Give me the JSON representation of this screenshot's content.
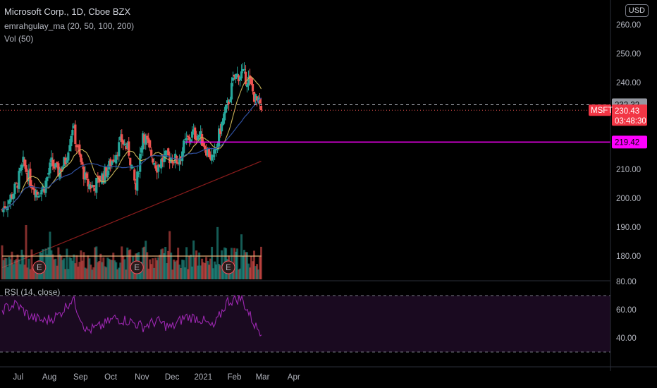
{
  "header": {
    "title": "Microsoft Corp., 1D, Cboe BZX",
    "ma_label": "emrahgulay_ma (20, 50, 100, 200)",
    "vol_label": "Vol (50)",
    "rsi_label": "RSI (14, close)",
    "currency": "USD"
  },
  "price_labels": {
    "ref_price": "232.32",
    "symbol": "MSFT",
    "last_price": "230.43",
    "countdown": "03:48:30",
    "level_price": "219.42"
  },
  "earnings_marker": "E",
  "colors": {
    "up": "#26a69a",
    "down": "#ef5350",
    "ma20": "#c9b458",
    "ma50": "#2f4f9e",
    "ma200": "#8b1c1c",
    "vol_ma": "#e8b27a",
    "level": "#ff00ff",
    "rsi": "#9c27b0"
  },
  "chart_data": {
    "type": "candlestick",
    "title": "Microsoft Corp., 1D, Cboe BZX",
    "price_axis": {
      "ticks": [
        "260.00",
        "250.00",
        "240.00",
        "230.00",
        "220.00",
        "210.00",
        "200.00",
        "190.00",
        "180.00"
      ],
      "range": [
        176,
        263
      ]
    },
    "rsi_axis": {
      "ticks": [
        "80.00",
        "60.00",
        "40.00"
      ],
      "bands": [
        70,
        30
      ]
    },
    "x_ticks": [
      "Jul",
      "Aug",
      "Sep",
      "Oct",
      "Nov",
      "Dec",
      "2021",
      "Feb",
      "Mar",
      "Apr"
    ],
    "horizontal_level": 219.42,
    "reference_line": 232.32,
    "earnings_events": [
      "2020-07-22",
      "2020-10-27",
      "2021-01-26"
    ],
    "close_series": [
      {
        "date": "2020-06-15",
        "close": 196.0
      },
      {
        "date": "2020-06-22",
        "close": 199.5
      },
      {
        "date": "2020-06-29",
        "close": 204.0
      },
      {
        "date": "2020-07-06",
        "close": 212.0
      },
      {
        "date": "2020-07-13",
        "close": 206.0
      },
      {
        "date": "2020-07-20",
        "close": 202.0
      },
      {
        "date": "2020-07-27",
        "close": 204.0
      },
      {
        "date": "2020-08-03",
        "close": 212.0
      },
      {
        "date": "2020-08-10",
        "close": 209.0
      },
      {
        "date": "2020-08-17",
        "close": 213.0
      },
      {
        "date": "2020-08-24",
        "close": 225.0
      },
      {
        "date": "2020-08-31",
        "close": 214.0
      },
      {
        "date": "2020-09-07",
        "close": 205.0
      },
      {
        "date": "2020-09-14",
        "close": 204.0
      },
      {
        "date": "2020-09-21",
        "close": 207.0
      },
      {
        "date": "2020-09-28",
        "close": 210.0
      },
      {
        "date": "2020-10-05",
        "close": 215.0
      },
      {
        "date": "2020-10-12",
        "close": 220.0
      },
      {
        "date": "2020-10-19",
        "close": 216.0
      },
      {
        "date": "2020-10-26",
        "close": 203.0
      },
      {
        "date": "2020-11-02",
        "close": 223.0
      },
      {
        "date": "2020-11-09",
        "close": 216.0
      },
      {
        "date": "2020-11-16",
        "close": 211.0
      },
      {
        "date": "2020-11-23",
        "close": 214.0
      },
      {
        "date": "2020-11-30",
        "close": 214.0
      },
      {
        "date": "2020-12-07",
        "close": 213.0
      },
      {
        "date": "2020-12-14",
        "close": 219.0
      },
      {
        "date": "2020-12-21",
        "close": 222.0
      },
      {
        "date": "2020-12-28",
        "close": 222.0
      },
      {
        "date": "2021-01-04",
        "close": 217.0
      },
      {
        "date": "2021-01-11",
        "close": 213.0
      },
      {
        "date": "2021-01-18",
        "close": 224.0
      },
      {
        "date": "2021-01-25",
        "close": 232.0
      },
      {
        "date": "2021-02-01",
        "close": 242.0
      },
      {
        "date": "2021-02-08",
        "close": 243.0
      },
      {
        "date": "2021-02-15",
        "close": 241.0
      },
      {
        "date": "2021-02-22",
        "close": 234.0
      },
      {
        "date": "2021-03-01",
        "close": 230.43
      }
    ],
    "rsi_series": [
      {
        "date": "2020-06-15",
        "rsi": 60
      },
      {
        "date": "2020-06-29",
        "rsi": 64
      },
      {
        "date": "2020-07-13",
        "rsi": 55
      },
      {
        "date": "2020-07-27",
        "rsi": 52
      },
      {
        "date": "2020-08-10",
        "rsi": 56
      },
      {
        "date": "2020-08-24",
        "rsi": 68
      },
      {
        "date": "2020-09-07",
        "rsi": 45
      },
      {
        "date": "2020-09-21",
        "rsi": 48
      },
      {
        "date": "2020-10-05",
        "rsi": 54
      },
      {
        "date": "2020-10-19",
        "rsi": 52
      },
      {
        "date": "2020-11-02",
        "rsi": 48
      },
      {
        "date": "2020-11-16",
        "rsi": 52
      },
      {
        "date": "2020-11-30",
        "rsi": 47
      },
      {
        "date": "2020-12-14",
        "rsi": 55
      },
      {
        "date": "2020-12-28",
        "rsi": 54
      },
      {
        "date": "2021-01-11",
        "rsi": 47
      },
      {
        "date": "2021-01-25",
        "rsi": 66
      },
      {
        "date": "2021-02-08",
        "rsi": 68
      },
      {
        "date": "2021-02-22",
        "rsi": 48
      },
      {
        "date": "2021-03-01",
        "rsi": 44
      }
    ]
  }
}
